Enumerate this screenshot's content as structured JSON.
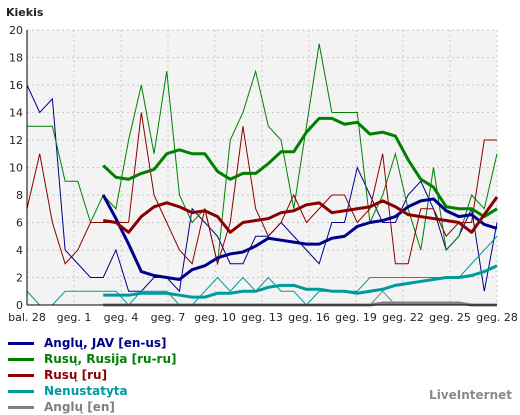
{
  "chart_data": {
    "type": "line",
    "ylabel": "Kiekis",
    "ylim": [
      0,
      20
    ],
    "yticks": [
      0,
      2,
      4,
      6,
      8,
      10,
      12,
      14,
      16,
      18,
      20
    ],
    "x_tick_labels": [
      "bal. 28",
      "geg. 1",
      "geg. 4",
      "geg. 7",
      "geg. 10",
      "geg. 13",
      "geg. 16",
      "geg. 19",
      "geg. 22",
      "geg. 25",
      "geg. 28"
    ],
    "grid": true,
    "legend_position": "bottom-left",
    "series": [
      {
        "name": "Anglų, JAV [en-us]",
        "color": "#00008b",
        "values": [
          16,
          14,
          15,
          4,
          3,
          2,
          2,
          4,
          1,
          1,
          2,
          2,
          1,
          7,
          6,
          5,
          3,
          3,
          5,
          5,
          6,
          5,
          4,
          3,
          6,
          6,
          10,
          8,
          6,
          6,
          8,
          9,
          7,
          4,
          5,
          7,
          1,
          6
        ],
        "trend": [
          null,
          null,
          null,
          null,
          null,
          null,
          null,
          null,
          null,
          null,
          null,
          null,
          null,
          null,
          null,
          null,
          null,
          null,
          null,
          null,
          null,
          null,
          null,
          null,
          null,
          null,
          null,
          null,
          null,
          null,
          null,
          null,
          null,
          null,
          null,
          null,
          null,
          null
        ]
      },
      {
        "name": "Rusų, Rusija [ru-ru]",
        "color": "#008000",
        "values": [
          13,
          13,
          13,
          9,
          9,
          6,
          8,
          7,
          12,
          16,
          11,
          17,
          8,
          6,
          7,
          3,
          12,
          14,
          17,
          13,
          12,
          7,
          13,
          19,
          14,
          14,
          14,
          6,
          8,
          11,
          7,
          4,
          10,
          4,
          5,
          8,
          7,
          11
        ],
        "trend": []
      },
      {
        "name": "Rusų [ru]",
        "color": "#8b0000",
        "values": [
          7,
          11,
          6,
          3,
          4,
          6,
          6,
          6,
          6,
          14,
          8,
          6,
          4,
          3,
          7,
          3,
          6,
          13,
          7,
          5,
          6,
          8,
          6,
          7,
          8,
          8,
          6,
          7,
          11,
          3,
          3,
          7,
          7,
          5,
          6,
          6,
          12,
          12
        ],
        "trend": []
      },
      {
        "name": "Nenustatyta",
        "color": "#009a9a",
        "values": [
          1,
          0,
          0,
          1,
          1,
          1,
          1,
          1,
          0,
          1,
          1,
          1,
          0,
          0,
          1,
          2,
          1,
          2,
          1,
          2,
          1,
          1,
          0,
          1,
          1,
          1,
          1,
          2,
          2,
          2,
          2,
          2,
          2,
          2,
          2,
          3,
          4,
          5
        ],
        "trend": []
      },
      {
        "name": "Anglų [en]",
        "color": "#808080",
        "values": [
          0,
          0,
          0,
          0,
          0,
          0,
          0,
          0,
          0,
          0,
          0,
          0,
          0,
          0,
          0,
          0,
          0,
          0,
          0,
          0,
          0,
          0,
          0,
          0,
          0,
          0,
          0,
          0,
          1,
          0,
          0,
          0,
          0,
          0,
          0,
          0,
          0,
          0
        ],
        "trend": []
      }
    ]
  },
  "brand": "LiveInternet"
}
